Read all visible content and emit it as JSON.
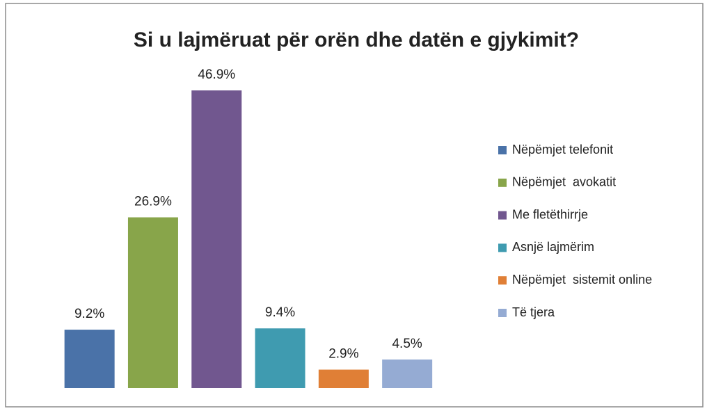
{
  "chart_data": {
    "type": "bar",
    "title": "Si u lajmëruat për orën dhe datën e gjykimit?",
    "categories": [
      "Nëpëmjet telefonit",
      "Nëpëmjet  avokatit",
      "Me fletëthirrje",
      "Asnjë lajmërim",
      "Nëpëmjet  sistemit online",
      "Të tjera"
    ],
    "values": [
      9.2,
      26.9,
      46.9,
      9.4,
      2.9,
      4.5
    ],
    "value_labels": [
      "9.2%",
      "26.9%",
      "46.9%",
      "9.4%",
      "2.9%",
      "4.5%"
    ],
    "colors": [
      "#4a72a8",
      "#88a54a",
      "#71578f",
      "#3f9bb0",
      "#e07f36",
      "#95abd3"
    ],
    "legend": "right"
  }
}
